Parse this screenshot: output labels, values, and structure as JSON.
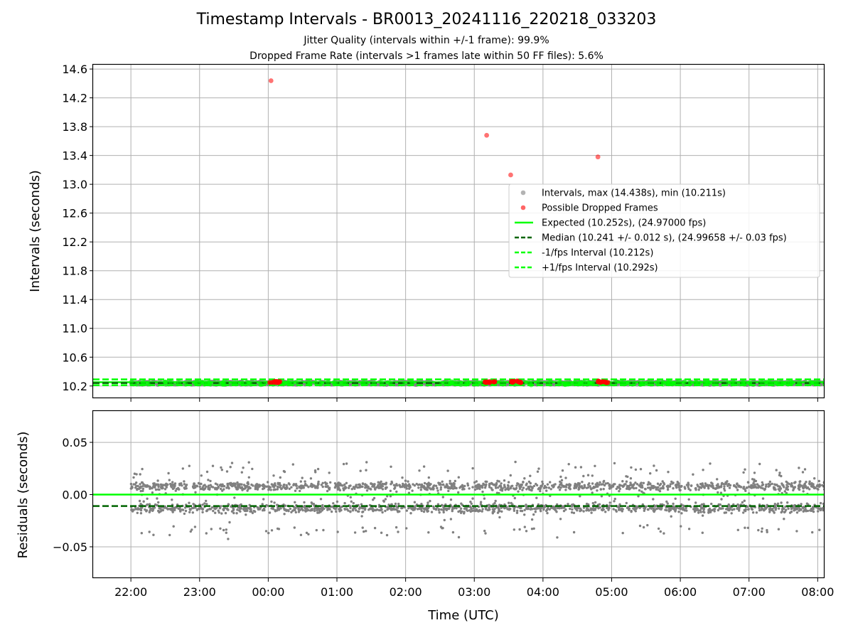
{
  "chart_data": {
    "title": "Timestamp Intervals - BR0013_20241116_220218_033203",
    "subtitle_1": "Jitter Quality (intervals within +/-1 frame): 99.9%",
    "subtitle_2": "Dropped Frame Rate (intervals >1 frames late within 50 FF files): 5.6%",
    "xlabel": "Time (UTC)",
    "x_range_hours_utc": [
      -2.55,
      8.1
    ],
    "x_ticks": [
      {
        "hour": -2,
        "label": "22:00"
      },
      {
        "hour": -1,
        "label": "23:00"
      },
      {
        "hour": 0,
        "label": "00:00"
      },
      {
        "hour": 1,
        "label": "01:00"
      },
      {
        "hour": 2,
        "label": "02:00"
      },
      {
        "hour": 3,
        "label": "03:00"
      },
      {
        "hour": 4,
        "label": "04:00"
      },
      {
        "hour": 5,
        "label": "05:00"
      },
      {
        "hour": 6,
        "label": "06:00"
      },
      {
        "hour": 7,
        "label": "07:00"
      },
      {
        "hour": 8,
        "label": "08:00"
      }
    ],
    "data_span_hours_utc": [
      -2.0,
      8.1
    ],
    "charts": [
      {
        "type": "scatter",
        "ylabel": "Intervals (seconds)",
        "ylim": [
          10.03,
          14.66
        ],
        "y_ticks": [
          {
            "value": 10.2,
            "label": "10.2"
          },
          {
            "value": 10.6,
            "label": "10.6"
          },
          {
            "value": 11.0,
            "label": "11.0"
          },
          {
            "value": 11.4,
            "label": "11.4"
          },
          {
            "value": 11.8,
            "label": "11.8"
          },
          {
            "value": 12.2,
            "label": "12.2"
          },
          {
            "value": 12.6,
            "label": "12.6"
          },
          {
            "value": 13.0,
            "label": "13.0"
          },
          {
            "value": 13.4,
            "label": "13.4"
          },
          {
            "value": 13.8,
            "label": "13.8"
          },
          {
            "value": 14.2,
            "label": "14.2"
          },
          {
            "value": 14.6,
            "label": "14.6"
          }
        ],
        "grid": true,
        "legend_placement": "right",
        "series": [
          {
            "name": "Intervals, max (14.438s), min (10.211s)",
            "kind": "points",
            "color": "#808080"
          },
          {
            "name": "Possible Dropped Frames",
            "kind": "points",
            "color": "#ff0000",
            "outliers": [
              {
                "hour": 0.04,
                "value": 14.438
              },
              {
                "hour": 3.18,
                "value": 13.68
              },
              {
                "hour": 3.53,
                "value": 13.13
              },
              {
                "hour": 4.8,
                "value": 13.38
              }
            ],
            "clusters": [
              {
                "from_hour": 0.02,
                "to_hour": 0.18
              },
              {
                "from_hour": 3.15,
                "to_hour": 3.3
              },
              {
                "from_hour": 3.5,
                "to_hour": 3.68
              },
              {
                "from_hour": 4.8,
                "to_hour": 4.98
              }
            ]
          },
          {
            "name": "Expected (10.252s), (24.97000 fps)",
            "kind": "hline",
            "value": 10.252,
            "color": "#00ff00",
            "style": "solid"
          },
          {
            "name": "Median (10.241 +/- 0.012 s), (24.99658 +/- 0.03 fps)",
            "kind": "hline",
            "value": 10.241,
            "color": "#006400",
            "style": "dashed"
          },
          {
            "name": "-1/fps Interval (10.212s)",
            "kind": "hline",
            "value": 10.212,
            "color": "#00ff00",
            "style": "dashed"
          },
          {
            "name": "+1/fps Interval (10.292s)",
            "kind": "hline",
            "value": 10.292,
            "color": "#00ff00",
            "style": "dashed"
          }
        ]
      },
      {
        "type": "scatter",
        "ylabel": "Residuals (seconds)",
        "ylim": [
          -0.08,
          0.08
        ],
        "y_ticks": [
          {
            "value": 0.05,
            "label": "0.05"
          },
          {
            "value": 0.0,
            "label": "0.00"
          },
          {
            "value": -0.05,
            "label": "−0.05"
          }
        ],
        "grid": true,
        "series": [
          {
            "kind": "points",
            "color": "#808080",
            "bands": [
              {
                "center": 0.008,
                "spread": 0.002,
                "share": 0.42
              },
              {
                "center": -0.013,
                "spread": 0.002,
                "share": 0.42
              },
              {
                "center": -0.002,
                "spread": 0.012,
                "share": 0.1
              },
              {
                "center": 0.02,
                "spread": 0.006,
                "share": 0.03
              },
              {
                "center": -0.034,
                "spread": 0.003,
                "share": 0.03
              }
            ]
          },
          {
            "kind": "hline",
            "value": 0.0,
            "color": "#00ff00",
            "style": "solid"
          },
          {
            "kind": "hline",
            "value": -0.011,
            "color": "#006400",
            "style": "dashed"
          }
        ]
      }
    ]
  }
}
